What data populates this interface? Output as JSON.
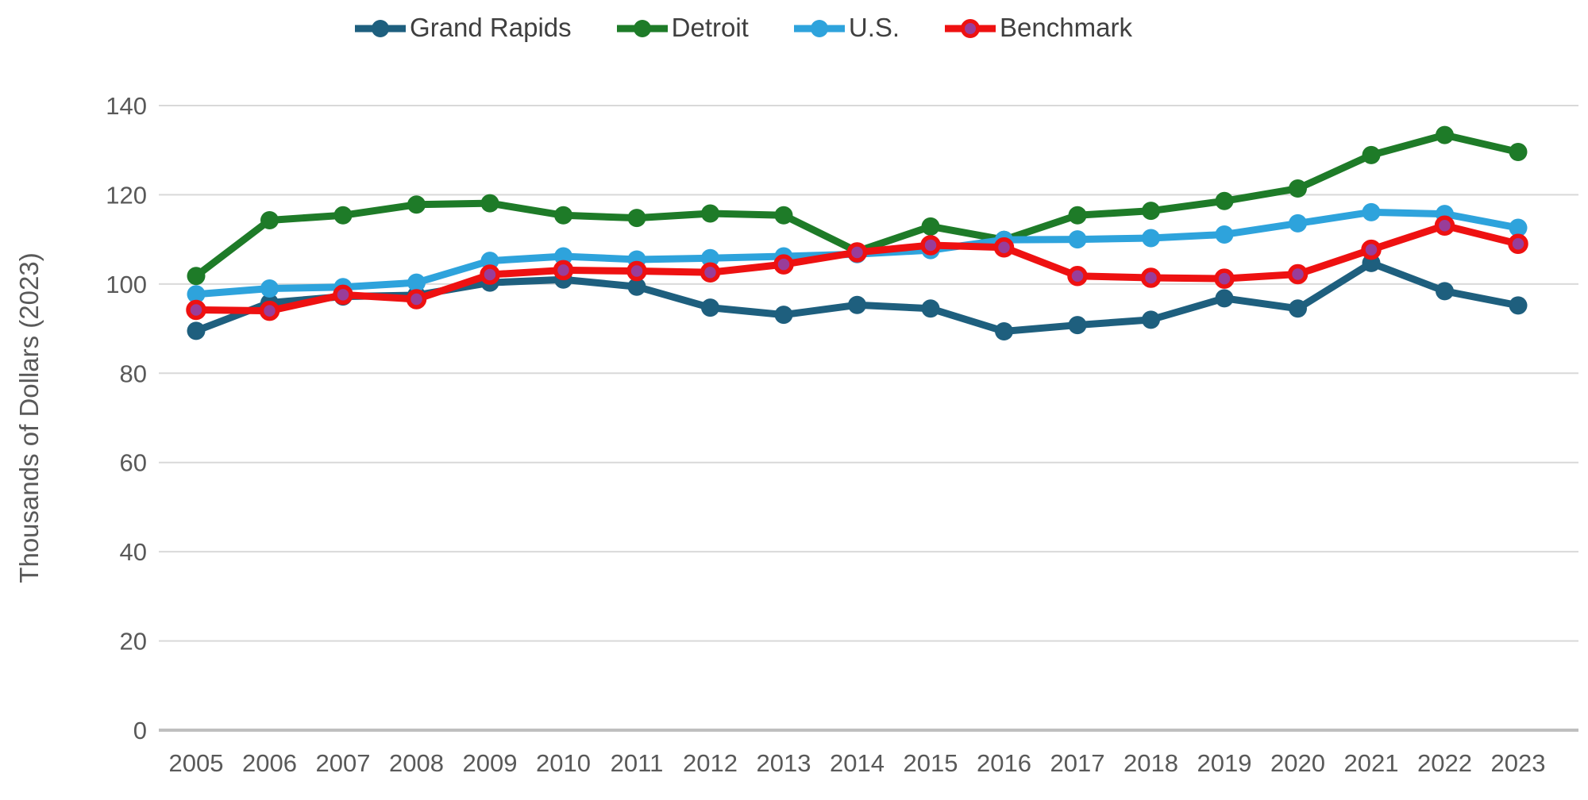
{
  "chart_data": {
    "type": "line",
    "title": "",
    "ylabel": "Thousands of Dollars (2023)",
    "xlabel": "",
    "ylim": [
      0,
      140
    ],
    "y_ticks": [
      0,
      20,
      40,
      60,
      80,
      100,
      120,
      140
    ],
    "grid": true,
    "legend_position": "top",
    "x": [
      2005,
      2006,
      2007,
      2008,
      2009,
      2010,
      2011,
      2012,
      2013,
      2014,
      2015,
      2016,
      2017,
      2018,
      2019,
      2020,
      2021,
      2022,
      2023
    ],
    "series": [
      {
        "name": "Grand Rapids",
        "color": "#1E5F7E",
        "marker_fill": "#1E5F7E",
        "values": [
          89.5,
          95.8,
          97.2,
          97.5,
          100.3,
          101.0,
          99.4,
          94.7,
          93.1,
          95.3,
          94.5,
          89.4,
          90.8,
          92.0,
          96.8,
          94.5,
          104.7,
          98.4,
          95.2
        ]
      },
      {
        "name": "Detroit",
        "color": "#1E7B28",
        "marker_fill": "#1E7B28",
        "values": [
          101.8,
          114.3,
          115.4,
          117.8,
          118.1,
          115.4,
          114.8,
          115.8,
          115.4,
          107.3,
          112.9,
          109.9,
          115.4,
          116.4,
          118.6,
          121.4,
          128.9,
          133.4,
          129.6
        ]
      },
      {
        "name": "U.S.",
        "color": "#2EA3DC",
        "marker_fill": "#2EA3DC",
        "values": [
          97.7,
          99.0,
          99.3,
          100.3,
          105.2,
          106.2,
          105.5,
          105.8,
          106.2,
          106.7,
          107.6,
          109.9,
          110.0,
          110.3,
          111.1,
          113.6,
          116.1,
          115.7,
          112.6
        ]
      },
      {
        "name": "Benchmark",
        "color": "#EE1111",
        "marker_fill": "#993D99",
        "marker_stroke": "#EE1111",
        "values": [
          94.2,
          94.0,
          97.6,
          96.6,
          102.1,
          103.1,
          102.9,
          102.6,
          104.4,
          107.1,
          108.7,
          108.2,
          101.8,
          101.4,
          101.2,
          102.2,
          107.7,
          113.1,
          109.0
        ]
      }
    ]
  },
  "colors": {
    "grid": "#D9D9D9",
    "axis": "#BFBFBF",
    "tick_text": "#595959",
    "axis_title_text": "#595959",
    "legend_text": "#3F3F3F",
    "background": "#FFFFFF"
  }
}
